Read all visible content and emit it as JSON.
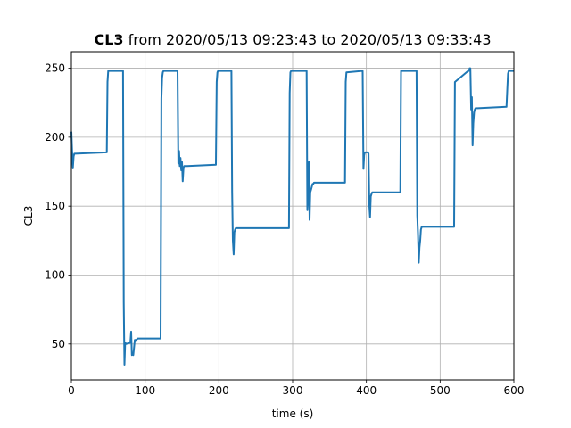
{
  "chart_data": {
    "type": "line",
    "title_bold": "CL3",
    "title_rest": " from 2020/05/13 09:23:43 to 2020/05/13 09:33:43",
    "xlabel": "time (s)",
    "ylabel": "CL3",
    "xlim": [
      0,
      600
    ],
    "ylim": [
      24,
      262
    ],
    "xticks": [
      0,
      100,
      200,
      300,
      400,
      500,
      600
    ],
    "yticks": [
      50,
      100,
      150,
      200,
      250
    ],
    "grid": true,
    "line_color": "#1f77b4",
    "series": [
      {
        "x": [
          0,
          1,
          2,
          3,
          4,
          5,
          48,
          49,
          50,
          51,
          70,
          71,
          72,
          73,
          74,
          80,
          81,
          82,
          83,
          84,
          86,
          88,
          90,
          121,
          122,
          123,
          124,
          125,
          126,
          144,
          145,
          146,
          147,
          148,
          149,
          150,
          151,
          152,
          153,
          154,
          155,
          156,
          157,
          196,
          197,
          198,
          199,
          216,
          217,
          218,
          219,
          220,
          221,
          222,
          223,
          295,
          296,
          297,
          298,
          318,
          319,
          320,
          321,
          322,
          323,
          324,
          325,
          326,
          327,
          328,
          329,
          330,
          331,
          370,
          371,
          372,
          373,
          394,
          395,
          396,
          397,
          398,
          402,
          403,
          404,
          405,
          406,
          407,
          408,
          409,
          410,
          444,
          445,
          446,
          447,
          466,
          467,
          468,
          469,
          470,
          471,
          472,
          473,
          474,
          475,
          477,
          478,
          517,
          518,
          519,
          520,
          538,
          539,
          540,
          541,
          542,
          543,
          544,
          545,
          546,
          547,
          548,
          549,
          550,
          551,
          590,
          591,
          592,
          593,
          600
        ],
        "y": [
          204,
          190,
          178,
          186,
          188,
          188,
          189,
          240,
          248,
          248,
          248,
          80,
          35,
          51,
          50,
          51,
          59,
          42,
          43,
          42,
          53,
          53,
          54,
          54,
          228,
          243,
          247,
          248,
          248,
          248,
          181,
          190,
          179,
          185,
          176,
          182,
          168,
          178,
          179,
          179,
          179,
          179,
          179,
          180,
          240,
          247,
          248,
          248,
          248,
          160,
          125,
          115,
          131,
          133,
          134,
          134,
          232,
          247,
          248,
          248,
          248,
          147,
          158,
          182,
          140,
          160,
          162,
          164,
          166,
          166,
          167,
          167,
          167,
          167,
          167,
          240,
          247,
          248,
          248,
          177,
          187,
          189,
          189,
          188,
          150,
          142,
          157,
          159,
          160,
          160,
          160,
          160,
          160,
          160,
          248,
          248,
          248,
          248,
          143,
          130,
          109,
          120,
          125,
          133,
          135,
          135,
          135,
          135,
          135,
          135,
          240,
          248,
          248,
          250,
          250,
          220,
          229,
          194,
          210,
          218,
          220,
          221,
          221,
          221,
          221,
          222,
          235,
          246,
          248,
          248
        ]
      }
    ]
  }
}
